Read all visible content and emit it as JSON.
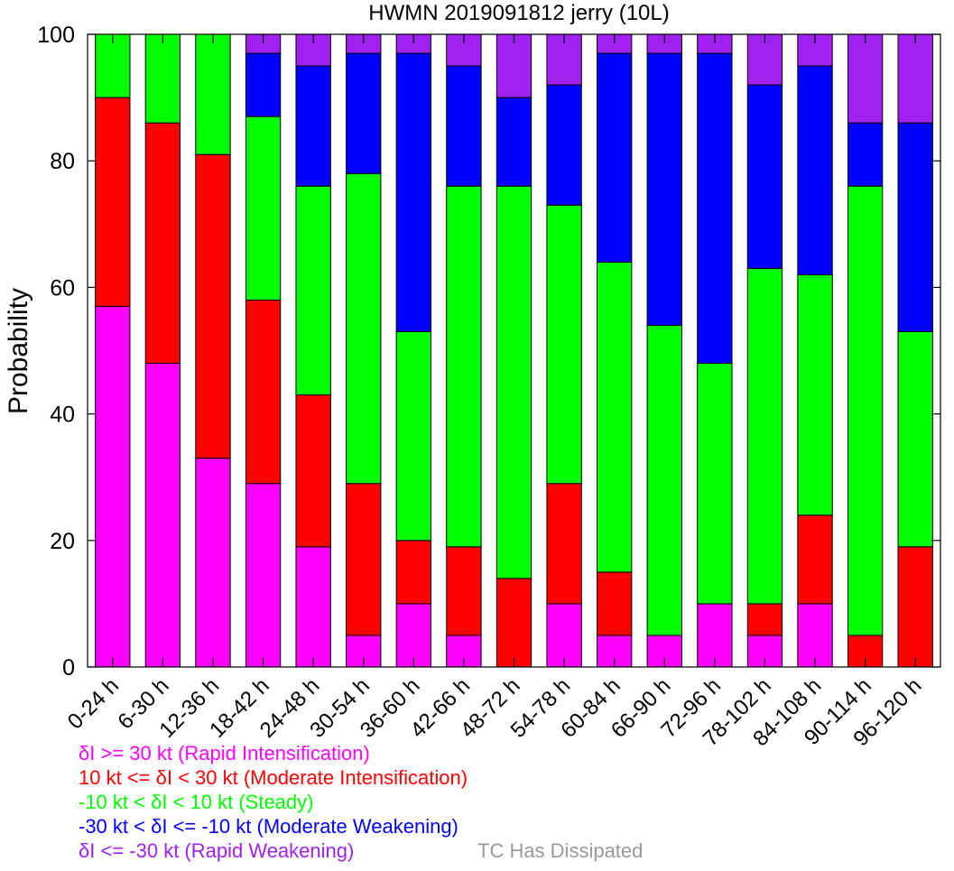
{
  "chart_data": {
    "type": "bar",
    "stacked": true,
    "title": "HWMN 2019091812 jerry (10L)",
    "ylabel": "Probability",
    "ylim": [
      0,
      100
    ],
    "yticks": [
      0,
      20,
      40,
      60,
      80,
      100
    ],
    "grid": false,
    "categories": [
      "0-24 h",
      "6-30 h",
      "12-36 h",
      "18-42 h",
      "24-48 h",
      "30-54 h",
      "36-60 h",
      "42-66 h",
      "48-72 h",
      "54-78 h",
      "60-84 h",
      "66-90 h",
      "72-96 h",
      "78-102 h",
      "84-108 h",
      "90-114 h",
      "96-120 h"
    ],
    "series": [
      {
        "name": "δI >= 30 kt (Rapid Intensification)",
        "color": "#ff00ff",
        "values": [
          57,
          48,
          33,
          29,
          19,
          5,
          10,
          5,
          0,
          10,
          5,
          5,
          10,
          5,
          10,
          0,
          0
        ]
      },
      {
        "name": "10 kt <= δI < 30 kt (Moderate Intensification)",
        "color": "#ff0000",
        "values": [
          33,
          38,
          48,
          29,
          24,
          24,
          10,
          14,
          14,
          19,
          10,
          0,
          0,
          5,
          14,
          5,
          19
        ]
      },
      {
        "name": "-10 kt < δI < 10 kt (Steady)",
        "color": "#00ff00",
        "values": [
          10,
          14,
          19,
          29,
          33,
          49,
          33,
          57,
          62,
          44,
          49,
          49,
          38,
          53,
          38,
          71,
          34
        ]
      },
      {
        "name": "-30 kt < δI <= -10 kt (Moderate Weakening)",
        "color": "#0000ff",
        "values": [
          0,
          0,
          0,
          10,
          19,
          19,
          44,
          19,
          14,
          19,
          33,
          43,
          49,
          29,
          33,
          10,
          33
        ]
      },
      {
        "name": "δI <= -30 kt (Rapid Weakening)",
        "color": "#a020f0",
        "values": [
          0,
          0,
          0,
          3,
          5,
          3,
          3,
          5,
          10,
          8,
          3,
          3,
          3,
          8,
          5,
          14,
          14
        ]
      }
    ],
    "extra_legend": {
      "name": "TC Has Dissipated",
      "color": "#999999"
    },
    "legend_position": "bottom-left"
  }
}
